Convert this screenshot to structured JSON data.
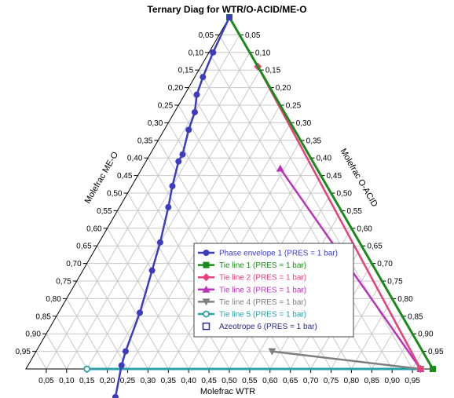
{
  "chart_data": {
    "type": "ternary",
    "title": "Ternary Diag for WTR/O-ACID/ME-O",
    "bottom_axis_label": "Molefrac WTR",
    "left_axis_label": "Molefrac ME-O",
    "right_axis_label": "Molefrac O-ACID",
    "tick_labels": [
      "0,05",
      "0,10",
      "0,15",
      "0,20",
      "0,25",
      "0,30",
      "0,35",
      "0,40",
      "0,45",
      "0,50",
      "0,55",
      "0,60",
      "0,65",
      "0,70",
      "0,75",
      "0,80",
      "0,85",
      "0,90",
      "0,95"
    ],
    "grid": true,
    "legend_placement": "center-right",
    "series": [
      {
        "name": "Phase envelope 1 (PRES = 1  bar)",
        "color": "#3c3cc0",
        "marker": "circle",
        "points": [
          [
            0.0,
            0.0
          ],
          [
            0.09,
            0.01
          ],
          [
            0.15,
            0.02
          ],
          [
            0.19,
            0.03
          ],
          [
            0.22,
            0.05
          ],
          [
            0.26,
            0.06
          ],
          [
            0.31,
            0.08
          ],
          [
            0.33,
            0.08
          ],
          [
            0.38,
            0.1
          ],
          [
            0.42,
            0.12
          ],
          [
            0.49,
            0.15
          ],
          [
            0.55,
            0.17
          ],
          [
            0.64,
            0.2
          ],
          [
            0.73,
            0.22
          ],
          [
            0.76,
            0.23
          ],
          [
            0.82,
            0.26
          ]
        ]
      },
      {
        "name": "Tie line 1 (PRES = 1  bar)",
        "color": "#1a8a1a",
        "marker": "square",
        "points": [
          [
            0.0,
            0.0
          ],
          [
            0.0,
            1.0
          ]
        ]
      },
      {
        "name": "Tie line 2 (PRES = 1  bar)",
        "color": "#e8407a",
        "marker": "diamond",
        "points": [
          [
            0.0,
            0.14
          ],
          [
            0.03,
            0.97
          ]
        ]
      },
      {
        "name": "Tie line 3 (PRES = 1  bar)",
        "color": "#bb33bb",
        "marker": "triangle",
        "points": [
          [
            0.09,
            0.34
          ],
          [
            0.03,
            0.97
          ]
        ]
      },
      {
        "name": "Tie line 4 (PRES = 1  bar)",
        "color": "#7f7f7f",
        "marker": "triangle-down",
        "points": [
          [
            0.37,
            0.58
          ],
          [
            0.03,
            0.97
          ]
        ]
      },
      {
        "name": "Tie line 5 (PRES = 1  bar)",
        "color": "#2aa0a8",
        "marker": "circle-open",
        "points": [
          [
            0.85,
            0.15
          ],
          [
            0.03,
            0.97
          ]
        ]
      },
      {
        "name": "Azeotrope 6 (PRES = 1  bar)",
        "color": "#2a2a80",
        "marker": "square-open",
        "points": []
      }
    ]
  }
}
